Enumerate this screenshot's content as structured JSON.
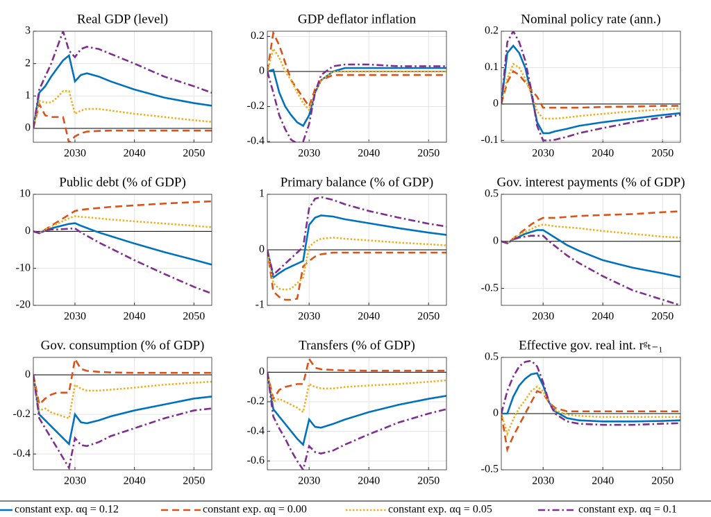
{
  "legend": [
    {
      "name": "constant exp. αq = 0.12",
      "color": "#0072BD",
      "style": "solid"
    },
    {
      "name": "constant exp. αq = 0.00",
      "color": "#D95319",
      "style": "dashed"
    },
    {
      "name": "constant exp. αq = 0.05",
      "color": "#EDB120",
      "style": "dotted"
    },
    {
      "name": "constant exp. αq = 0.1",
      "color": "#7E2F8E",
      "style": "dashdot"
    }
  ],
  "chart_data": [
    {
      "type": "line",
      "title": "Real GDP (level)",
      "x": [
        2023,
        2024,
        2025,
        2026,
        2027,
        2028,
        2029,
        2030,
        2031,
        2032,
        2034,
        2036,
        2040,
        2045,
        2050,
        2053
      ],
      "xlim": [
        2023,
        2053
      ],
      "xticks": [
        2030,
        2040,
        2050
      ],
      "ylim": [
        -0.43,
        3
      ],
      "yticks": [
        0,
        1,
        2,
        3
      ],
      "grid": true,
      "series": [
        {
          "values": [
            0,
            1.1,
            1.3,
            1.6,
            1.85,
            2.1,
            2.25,
            1.45,
            1.65,
            1.7,
            1.6,
            1.45,
            1.2,
            0.95,
            0.78,
            0.7
          ]
        },
        {
          "values": [
            0,
            0.75,
            0.4,
            0.35,
            0.35,
            0.35,
            -0.45,
            -0.25,
            -0.15,
            -0.1,
            -0.08,
            -0.07,
            -0.07,
            -0.07,
            -0.07,
            -0.07
          ]
        },
        {
          "values": [
            0,
            0.85,
            0.8,
            0.8,
            0.95,
            1.15,
            1.15,
            0.45,
            0.55,
            0.6,
            0.6,
            0.55,
            0.45,
            0.35,
            0.25,
            0.2
          ]
        },
        {
          "values": [
            0,
            1.2,
            1.6,
            2.0,
            2.5,
            3.0,
            2.4,
            2.2,
            2.45,
            2.52,
            2.45,
            2.3,
            2.0,
            1.6,
            1.3,
            1.1
          ]
        }
      ]
    },
    {
      "type": "line",
      "title": "GDP deflator inflation",
      "x": [
        2023,
        2024,
        2025,
        2026,
        2027,
        2028,
        2029,
        2030,
        2031,
        2032,
        2034,
        2036,
        2040,
        2045,
        2050,
        2053
      ],
      "xlim": [
        2023,
        2053
      ],
      "xticks": [
        2030,
        2040,
        2050
      ],
      "ylim": [
        -0.404,
        0.23
      ],
      "yticks": [
        -0.4,
        -0.2,
        0,
        0.2
      ],
      "grid": true,
      "series": [
        {
          "values": [
            0,
            0.01,
            -0.12,
            -0.2,
            -0.25,
            -0.29,
            -0.31,
            -0.25,
            -0.12,
            -0.05,
            0,
            0.02,
            0.02,
            0.02,
            0.02,
            0.02
          ]
        },
        {
          "values": [
            0,
            0.22,
            0.15,
            0.05,
            -0.05,
            -0.1,
            -0.15,
            -0.2,
            -0.1,
            -0.05,
            -0.02,
            -0.02,
            -0.02,
            -0.02,
            -0.02,
            -0.02
          ]
        },
        {
          "values": [
            0,
            0.13,
            0.08,
            0,
            -0.05,
            -0.12,
            -0.18,
            -0.22,
            -0.12,
            -0.05,
            0,
            0,
            0,
            0,
            0,
            0
          ]
        },
        {
          "values": [
            0,
            -0.12,
            -0.25,
            -0.33,
            -0.39,
            -0.41,
            -0.4,
            -0.3,
            -0.12,
            -0.02,
            0.03,
            0.04,
            0.04,
            0.03,
            0.03,
            0.03
          ]
        }
      ]
    },
    {
      "type": "line",
      "title": "Nominal policy rate (ann.)",
      "x": [
        2023,
        2024,
        2025,
        2026,
        2027,
        2028,
        2029,
        2030,
        2031,
        2032,
        2034,
        2036,
        2040,
        2045,
        2050,
        2053
      ],
      "xlim": [
        2023,
        2053
      ],
      "xticks": [
        2030,
        2040,
        2050
      ],
      "ylim": [
        -0.105,
        0.2
      ],
      "yticks": [
        -0.1,
        0,
        0.1,
        0.2
      ],
      "grid": true,
      "series": [
        {
          "values": [
            0,
            0.14,
            0.16,
            0.14,
            0.1,
            0.03,
            -0.05,
            -0.08,
            -0.08,
            -0.075,
            -0.068,
            -0.06,
            -0.05,
            -0.04,
            -0.03,
            -0.025
          ]
        },
        {
          "values": [
            0,
            0.06,
            0.09,
            0.08,
            0.06,
            0.04,
            0.02,
            -0.01,
            -0.01,
            -0.01,
            -0.01,
            -0.01,
            -0.008,
            -0.007,
            -0.005,
            -0.005
          ]
        },
        {
          "values": [
            0,
            0.07,
            0.11,
            0.1,
            0.07,
            0.03,
            -0.02,
            -0.04,
            -0.04,
            -0.04,
            -0.037,
            -0.033,
            -0.027,
            -0.02,
            -0.015,
            -0.012
          ]
        },
        {
          "values": [
            0,
            0.17,
            0.2,
            0.17,
            0.12,
            0.04,
            -0.06,
            -0.1,
            -0.1,
            -0.098,
            -0.09,
            -0.08,
            -0.066,
            -0.05,
            -0.037,
            -0.03
          ]
        }
      ]
    },
    {
      "type": "line",
      "title": "Public debt (% of GDP)",
      "x": [
        2023,
        2024,
        2025,
        2026,
        2027,
        2028,
        2029,
        2030,
        2031,
        2032,
        2034,
        2036,
        2040,
        2045,
        2050,
        2053
      ],
      "xlim": [
        2023,
        2053
      ],
      "xticks": [
        2030,
        2040,
        2050
      ],
      "ylim": [
        -20,
        10
      ],
      "yticks": [
        -20,
        -10,
        0,
        10
      ],
      "grid": true,
      "series": [
        {
          "values": [
            0,
            -0.5,
            0.2,
            0.8,
            1.2,
            1.6,
            2.0,
            2.2,
            1.5,
            0.9,
            -0.3,
            -1.3,
            -3.3,
            -5.6,
            -7.7,
            -9
          ]
        },
        {
          "values": [
            0,
            -0.5,
            0.5,
            1.5,
            2.5,
            3.5,
            4.5,
            5.5,
            5.8,
            6.0,
            6.3,
            6.6,
            7.0,
            7.5,
            7.9,
            8.1
          ]
        },
        {
          "values": [
            0,
            -0.5,
            0.5,
            1.3,
            2.0,
            2.8,
            3.5,
            4.1,
            3.9,
            3.8,
            3.5,
            3.2,
            2.7,
            2.1,
            1.5,
            1.1
          ]
        },
        {
          "values": [
            0,
            -0.5,
            0.2,
            0.5,
            0.5,
            0.6,
            0.7,
            0.8,
            -0.3,
            -1.2,
            -3.0,
            -4.6,
            -7.8,
            -11.5,
            -15.0,
            -16.8
          ]
        }
      ]
    },
    {
      "type": "line",
      "title": "Primary balance (% of GDP)",
      "x": [
        2023,
        2024,
        2025,
        2026,
        2027,
        2028,
        2029,
        2030,
        2031,
        2032,
        2034,
        2036,
        2040,
        2045,
        2050,
        2053
      ],
      "xlim": [
        2023,
        2053
      ],
      "xticks": [
        2030,
        2040,
        2050
      ],
      "ylim": [
        -1,
        1
      ],
      "yticks": [
        -1,
        0,
        1
      ],
      "grid": true,
      "series": [
        {
          "values": [
            0,
            -0.5,
            -0.42,
            -0.35,
            -0.3,
            -0.25,
            -0.2,
            0.45,
            0.58,
            0.62,
            0.6,
            0.55,
            0.48,
            0.39,
            0.31,
            0.27
          ]
        },
        {
          "values": [
            0,
            -0.75,
            -0.85,
            -0.9,
            -0.9,
            -0.88,
            -0.3,
            -0.2,
            -0.12,
            -0.08,
            -0.05,
            -0.05,
            -0.05,
            -0.05,
            -0.05,
            -0.05
          ]
        },
        {
          "values": [
            0,
            -0.6,
            -0.7,
            -0.72,
            -0.7,
            -0.6,
            -0.5,
            0.05,
            0.15,
            0.2,
            0.22,
            0.2,
            0.17,
            0.13,
            0.1,
            0.08
          ]
        },
        {
          "values": [
            0,
            -0.45,
            -0.35,
            -0.25,
            -0.15,
            -0.05,
            0.05,
            0.75,
            0.92,
            0.95,
            0.9,
            0.82,
            0.7,
            0.58,
            0.47,
            0.42
          ]
        }
      ]
    },
    {
      "type": "line",
      "title": "Gov. interest payments (% of GDP)",
      "x": [
        2023,
        2024,
        2025,
        2026,
        2027,
        2028,
        2029,
        2030,
        2031,
        2032,
        2034,
        2036,
        2040,
        2045,
        2050,
        2053
      ],
      "xlim": [
        2023,
        2053
      ],
      "xticks": [
        2030,
        2040,
        2050
      ],
      "ylim": [
        -0.68,
        0.5
      ],
      "yticks": [
        -0.5,
        0,
        0.5
      ],
      "grid": true,
      "series": [
        {
          "values": [
            0,
            -0.02,
            0.02,
            0.05,
            0.08,
            0.1,
            0.12,
            0.12,
            0.08,
            0.04,
            -0.04,
            -0.1,
            -0.2,
            -0.28,
            -0.34,
            -0.38
          ]
        },
        {
          "values": [
            0,
            -0.02,
            0.03,
            0.08,
            0.13,
            0.18,
            0.22,
            0.25,
            0.25,
            0.25,
            0.26,
            0.27,
            0.28,
            0.29,
            0.31,
            0.32
          ]
        },
        {
          "values": [
            0,
            -0.02,
            0.03,
            0.07,
            0.1,
            0.13,
            0.16,
            0.18,
            0.17,
            0.16,
            0.15,
            0.14,
            0.11,
            0.08,
            0.05,
            0.04
          ]
        },
        {
          "values": [
            0,
            -0.02,
            0.02,
            0.04,
            0.05,
            0.06,
            0.06,
            0.06,
            0,
            -0.05,
            -0.15,
            -0.23,
            -0.37,
            -0.52,
            -0.62,
            -0.68
          ]
        }
      ]
    },
    {
      "type": "line",
      "title": "Gov. consumption (% of GDP)",
      "x": [
        2023,
        2024,
        2025,
        2026,
        2027,
        2028,
        2029,
        2030,
        2031,
        2032,
        2034,
        2036,
        2040,
        2045,
        2050,
        2053
      ],
      "xlim": [
        2023,
        2053
      ],
      "xticks": [
        2030,
        2040,
        2050
      ],
      "ylim": [
        -0.48,
        0.088
      ],
      "yticks": [
        -0.4,
        -0.2,
        0
      ],
      "grid": true,
      "series": [
        {
          "values": [
            0,
            -0.2,
            -0.23,
            -0.26,
            -0.29,
            -0.32,
            -0.35,
            -0.2,
            -0.24,
            -0.245,
            -0.23,
            -0.21,
            -0.18,
            -0.15,
            -0.12,
            -0.11
          ]
        },
        {
          "values": [
            0,
            -0.15,
            -0.12,
            -0.1,
            -0.09,
            -0.09,
            -0.09,
            0.08,
            0.03,
            0.02,
            0.015,
            0.012,
            0.01,
            0.01,
            0.01,
            0.01
          ]
        },
        {
          "values": [
            0,
            -0.18,
            -0.17,
            -0.19,
            -0.2,
            -0.21,
            -0.22,
            -0.05,
            -0.07,
            -0.08,
            -0.08,
            -0.075,
            -0.065,
            -0.05,
            -0.04,
            -0.035
          ]
        },
        {
          "values": [
            0,
            -0.22,
            -0.27,
            -0.32,
            -0.37,
            -0.42,
            -0.47,
            -0.32,
            -0.355,
            -0.36,
            -0.34,
            -0.31,
            -0.27,
            -0.22,
            -0.18,
            -0.17
          ]
        }
      ]
    },
    {
      "type": "line",
      "title": "Transfers (% of GDP)",
      "x": [
        2023,
        2024,
        2025,
        2026,
        2027,
        2028,
        2029,
        2030,
        2031,
        2032,
        2034,
        2036,
        2040,
        2045,
        2050,
        2053
      ],
      "xlim": [
        2023,
        2053
      ],
      "xticks": [
        2030,
        2040,
        2050
      ],
      "ylim": [
        -0.66,
        0.1
      ],
      "yticks": [
        -0.6,
        -0.4,
        -0.2,
        0
      ],
      "grid": true,
      "series": [
        {
          "values": [
            0,
            -0.25,
            -0.3,
            -0.35,
            -0.4,
            -0.45,
            -0.49,
            -0.32,
            -0.37,
            -0.375,
            -0.35,
            -0.32,
            -0.27,
            -0.22,
            -0.18,
            -0.16
          ]
        },
        {
          "values": [
            0,
            -0.18,
            -0.12,
            -0.1,
            -0.09,
            -0.08,
            -0.08,
            0.09,
            0.03,
            0.02,
            0.015,
            0.012,
            0.01,
            0.01,
            0.01,
            0.01
          ]
        },
        {
          "values": [
            0,
            -0.2,
            -0.18,
            -0.2,
            -0.22,
            -0.24,
            -0.27,
            -0.08,
            -0.1,
            -0.11,
            -0.11,
            -0.1,
            -0.09,
            -0.08,
            -0.065,
            -0.055
          ]
        },
        {
          "values": [
            0,
            -0.3,
            -0.38,
            -0.45,
            -0.53,
            -0.6,
            -0.66,
            -0.5,
            -0.54,
            -0.55,
            -0.53,
            -0.49,
            -0.42,
            -0.34,
            -0.28,
            -0.25
          ]
        }
      ]
    },
    {
      "type": "line",
      "title": "Effective gov. real int. rᵍₜ₋₁",
      "x": [
        2023,
        2024,
        2025,
        2026,
        2027,
        2028,
        2029,
        2030,
        2031,
        2032,
        2034,
        2036,
        2040,
        2045,
        2050,
        2053
      ],
      "xlim": [
        2023,
        2053
      ],
      "xticks": [
        2030,
        2040,
        2050
      ],
      "ylim": [
        -0.5,
        0.5
      ],
      "yticks": [
        -0.5,
        0,
        0.5
      ],
      "grid": true,
      "series": [
        {
          "values": [
            0,
            0,
            0.15,
            0.25,
            0.31,
            0.35,
            0.36,
            0.25,
            0.1,
            0.02,
            -0.04,
            -0.06,
            -0.07,
            -0.07,
            -0.065,
            -0.06
          ]
        },
        {
          "values": [
            0,
            -0.32,
            -0.2,
            -0.1,
            0,
            0.1,
            0.2,
            0.18,
            0.1,
            0.05,
            0.02,
            0.02,
            0.02,
            0.02,
            0.02,
            0.02
          ]
        },
        {
          "values": [
            0,
            -0.18,
            -0.05,
            0.05,
            0.12,
            0.2,
            0.24,
            0.2,
            0.1,
            0.03,
            -0.01,
            -0.02,
            -0.03,
            -0.03,
            -0.03,
            -0.03
          ]
        },
        {
          "values": [
            0,
            0.2,
            0.33,
            0.42,
            0.46,
            0.47,
            0.42,
            0.28,
            0.1,
            0,
            -0.07,
            -0.09,
            -0.1,
            -0.1,
            -0.09,
            -0.085
          ]
        }
      ]
    }
  ]
}
